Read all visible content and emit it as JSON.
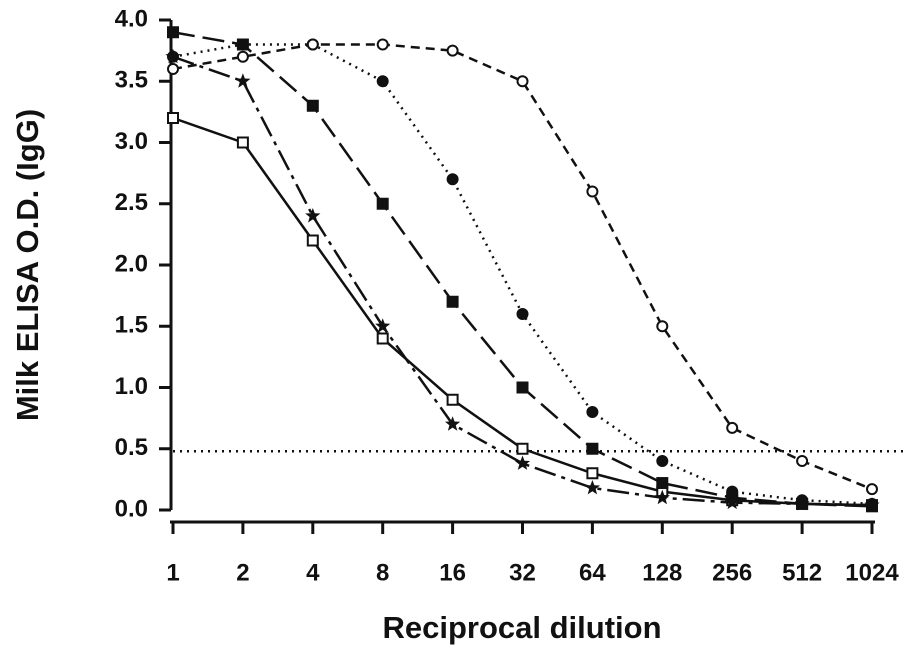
{
  "chart_data": {
    "type": "line",
    "x_label": "Reciprocal dilution",
    "y_label": "Milk ELISA O.D. (IgG)",
    "categories": [
      "1",
      "2",
      "4",
      "8",
      "16",
      "32",
      "64",
      "128",
      "256",
      "512",
      "1024"
    ],
    "ylim": [
      0,
      4
    ],
    "yticks": [
      {
        "value": 0,
        "label": "0.0"
      },
      0.5,
      {
        "value": 1,
        "label": "1.0"
      },
      1.5,
      {
        "value": 2,
        "label": "2.0"
      },
      2.5,
      {
        "value": 3,
        "label": "3.0"
      },
      3.5,
      {
        "value": 4,
        "label": "4.0"
      }
    ],
    "reference_line": 0.48,
    "series": [
      {
        "color": "#111111",
        "marker": "open-square",
        "dash": "solid",
        "values": [
          3.2,
          3.0,
          2.2,
          1.4,
          0.9,
          0.5,
          0.3,
          0.15,
          0.08,
          0.05,
          0.04
        ]
      },
      {
        "color": "#111111",
        "marker": "star",
        "dash": "dash-dot",
        "values": [
          3.7,
          3.5,
          2.4,
          1.5,
          0.7,
          0.38,
          0.18,
          0.1,
          0.06,
          0.05,
          0.04
        ]
      },
      {
        "color": "#111111",
        "marker": "filled-square",
        "dash": "long-dash",
        "values": [
          3.9,
          3.8,
          3.3,
          2.5,
          1.7,
          1.0,
          0.5,
          0.22,
          0.1,
          0.05,
          0.03
        ]
      },
      {
        "color": "#111111",
        "marker": "filled-circle",
        "dash": "dotted",
        "values": [
          3.7,
          3.8,
          3.8,
          3.5,
          2.7,
          1.6,
          0.8,
          0.4,
          0.15,
          0.08,
          0.05
        ]
      },
      {
        "color": "#111111",
        "marker": "open-circle",
        "dash": "short-dash",
        "values": [
          3.6,
          3.7,
          3.8,
          3.8,
          3.75,
          3.5,
          2.6,
          1.5,
          0.67,
          0.4,
          0.17
        ]
      }
    ]
  }
}
